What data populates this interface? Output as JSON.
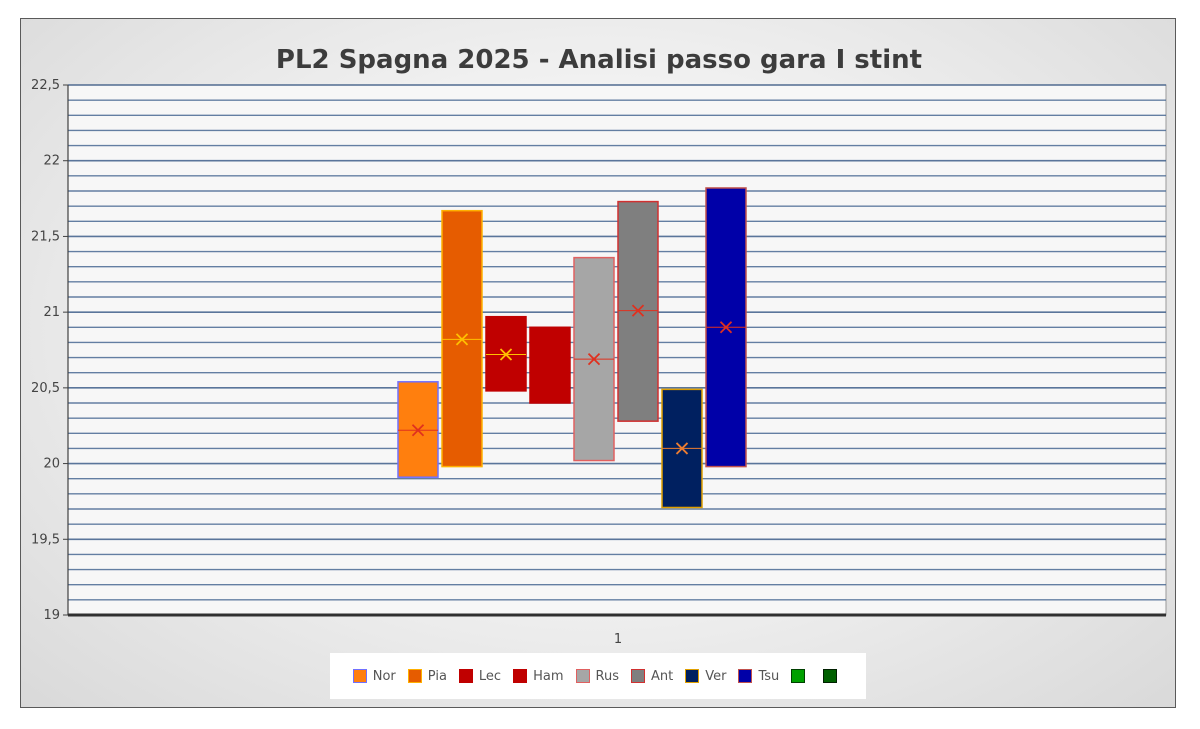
{
  "chart_data": {
    "type": "box",
    "title": "PL2 Spagna 2025 - Analisi passo gara I stint",
    "xlabel": "",
    "ylabel": "",
    "categories": [
      "1"
    ],
    "ylim": [
      19,
      22.5
    ],
    "y_ticks": [
      "19",
      "19,5",
      "20",
      "20,5",
      "21",
      "21,5",
      "22",
      "22,5"
    ],
    "y_tick_values": [
      19,
      19.5,
      20,
      20.5,
      21,
      21.5,
      22,
      22.5
    ],
    "grid": true,
    "legend_position": "bottom",
    "series": [
      {
        "name": "Nor",
        "min": 19.91,
        "max": 20.54,
        "mean": 20.22,
        "median": 20.22,
        "color": "#ff7f0e",
        "border": "#7070ff",
        "mean_color": "#e0301e"
      },
      {
        "name": "Pia",
        "min": 19.98,
        "max": 21.67,
        "mean": 20.82,
        "median": 20.82,
        "color": "#e65c00",
        "border": "#ffb000",
        "mean_color": "#ffc000"
      },
      {
        "name": "Lec",
        "min": 20.48,
        "max": 20.97,
        "mean": 20.72,
        "median": 20.72,
        "color": "#c00000",
        "border": "#c00000",
        "mean_color": "#ffc000"
      },
      {
        "name": "Ham",
        "min": 20.4,
        "max": 20.9,
        "mean": null,
        "median": null,
        "color": "#c00000",
        "border": "#c00000",
        "mean_color": "#ffc000"
      },
      {
        "name": "Rus",
        "min": 20.02,
        "max": 21.36,
        "mean": 20.69,
        "median": 20.69,
        "color": "#a6a6a6",
        "border": "#e06060",
        "mean_color": "#e0301e"
      },
      {
        "name": "Ant",
        "min": 20.28,
        "max": 21.73,
        "mean": 21.01,
        "median": 21.01,
        "color": "#7f7f7f",
        "border": "#d03030",
        "mean_color": "#e0301e"
      },
      {
        "name": "Ver",
        "min": 19.71,
        "max": 20.49,
        "mean": 20.1,
        "median": 20.1,
        "color": "#002060",
        "border": "#e0a000",
        "mean_color": "#ed7d31"
      },
      {
        "name": "Tsu",
        "min": 19.98,
        "max": 21.82,
        "mean": 20.9,
        "median": 20.9,
        "color": "#0000a8",
        "border": "#c0504d",
        "mean_color": "#e0301e"
      },
      {
        "name": "",
        "min": null,
        "max": null,
        "mean": null,
        "median": null,
        "color": "#00a000",
        "border": "#004000",
        "mean_color": ""
      },
      {
        "name": "",
        "min": null,
        "max": null,
        "mean": null,
        "median": null,
        "color": "#006000",
        "border": "#002000",
        "mean_color": ""
      }
    ]
  },
  "legend": {
    "labels": [
      "Nor",
      "Pia",
      "Lec",
      "Ham",
      "Rus",
      "Ant",
      "Ver",
      "Tsu",
      "",
      ""
    ]
  }
}
